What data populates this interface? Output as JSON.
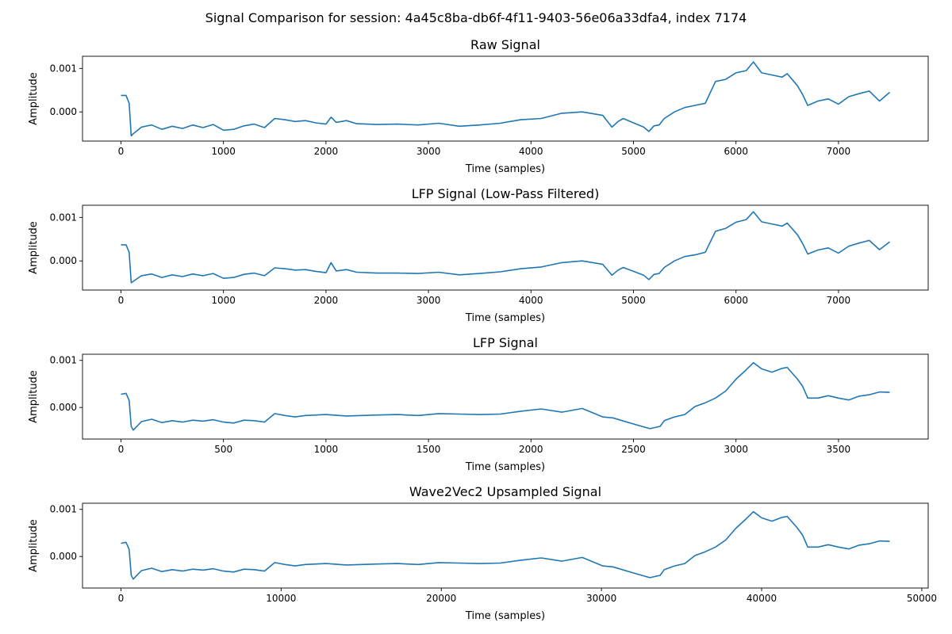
{
  "figure": {
    "title": "Signal Comparison for session: 4a45c8ba-db6f-4f11-9403-56e06a33dfa4, index 7174"
  },
  "chart_data": [
    {
      "type": "line",
      "title": "Raw Signal",
      "xlabel": "Time (samples)",
      "ylabel": "Amplitude",
      "xlim": [
        -375,
        7875
      ],
      "ylim": [
        -0.00067,
        0.00128
      ],
      "xticks": [
        0,
        1000,
        2000,
        3000,
        4000,
        5000,
        6000,
        7000
      ],
      "xtick_labels": [
        "0",
        "1000",
        "2000",
        "3000",
        "4000",
        "5000",
        "6000",
        "7000"
      ],
      "yticks": [
        0.0,
        0.001
      ],
      "ytick_labels": [
        "0.000",
        "0.001"
      ],
      "grid": false,
      "color": "#1f77b4",
      "series": [
        {
          "x": [
            0,
            50,
            80,
            100,
            120,
            200,
            300,
            400,
            500,
            600,
            700,
            800,
            900,
            1000,
            1100,
            1200,
            1300,
            1400,
            1500,
            1600,
            1700,
            1800,
            1900,
            2000,
            2050,
            2100,
            2200,
            2300,
            2500,
            2700,
            2900,
            3100,
            3300,
            3500,
            3700,
            3900,
            4100,
            4300,
            4500,
            4700,
            4790,
            4850,
            4900,
            5000,
            5100,
            5150,
            5200,
            5250,
            5300,
            5400,
            5500,
            5600,
            5700,
            5800,
            5900,
            6000,
            6100,
            6170,
            6250,
            6350,
            6450,
            6500,
            6600,
            6650,
            6700,
            6800,
            6900,
            7000,
            7100,
            7200,
            7300,
            7400,
            7500
          ],
          "y": [
            0.00038,
            0.00038,
            0.0002,
            -0.00055,
            -0.0005,
            -0.00035,
            -0.0003,
            -0.0004,
            -0.00033,
            -0.00038,
            -0.0003,
            -0.00036,
            -0.00029,
            -0.00042,
            -0.0004,
            -0.00032,
            -0.00028,
            -0.00036,
            -0.00015,
            -0.00018,
            -0.00022,
            -0.0002,
            -0.00025,
            -0.00028,
            -0.00012,
            -0.00024,
            -0.0002,
            -0.00027,
            -0.00029,
            -0.00028,
            -0.0003,
            -0.00026,
            -0.00033,
            -0.0003,
            -0.00026,
            -0.00018,
            -0.00015,
            -3e-05,
            0.0,
            -8e-05,
            -0.00035,
            -0.00022,
            -0.00015,
            -0.00025,
            -0.00035,
            -0.00045,
            -0.00032,
            -0.0003,
            -0.00015,
            0.0,
            0.0001,
            0.00015,
            0.0002,
            0.0007,
            0.00075,
            0.0009,
            0.00095,
            0.00115,
            0.0009,
            0.00085,
            0.0008,
            0.00088,
            0.0006,
            0.0004,
            0.00015,
            0.00025,
            0.0003,
            0.00018,
            0.00035,
            0.00042,
            0.00048,
            0.00025,
            0.00045
          ]
        }
      ]
    },
    {
      "type": "line",
      "title": "LFP Signal (Low-Pass Filtered)",
      "xlabel": "Time (samples)",
      "ylabel": "Amplitude",
      "xlim": [
        -375,
        7875
      ],
      "ylim": [
        -0.00067,
        0.00128
      ],
      "xticks": [
        0,
        1000,
        2000,
        3000,
        4000,
        5000,
        6000,
        7000
      ],
      "xtick_labels": [
        "0",
        "1000",
        "2000",
        "3000",
        "4000",
        "5000",
        "6000",
        "7000"
      ],
      "yticks": [
        0.0,
        0.001
      ],
      "ytick_labels": [
        "0.000",
        "0.001"
      ],
      "grid": false,
      "color": "#1f77b4",
      "series": [
        {
          "x": [
            0,
            50,
            80,
            100,
            120,
            200,
            300,
            400,
            500,
            600,
            700,
            800,
            900,
            1000,
            1100,
            1200,
            1300,
            1400,
            1500,
            1600,
            1700,
            1800,
            1900,
            2000,
            2050,
            2100,
            2200,
            2300,
            2500,
            2700,
            2900,
            3100,
            3300,
            3500,
            3700,
            3900,
            4100,
            4300,
            4500,
            4700,
            4790,
            4850,
            4900,
            5000,
            5100,
            5150,
            5200,
            5250,
            5300,
            5400,
            5500,
            5600,
            5700,
            5800,
            5900,
            6000,
            6100,
            6170,
            6250,
            6350,
            6450,
            6500,
            6600,
            6650,
            6700,
            6800,
            6900,
            7000,
            7100,
            7200,
            7300,
            7400,
            7500
          ],
          "y": [
            0.00037,
            0.00037,
            0.0002,
            -0.0005,
            -0.00047,
            -0.00034,
            -0.0003,
            -0.00038,
            -0.00032,
            -0.00036,
            -0.0003,
            -0.00034,
            -0.00029,
            -0.0004,
            -0.00038,
            -0.00031,
            -0.00028,
            -0.00034,
            -0.00016,
            -0.00018,
            -0.00021,
            -0.0002,
            -0.00024,
            -0.00027,
            -4e-05,
            -0.00023,
            -0.0002,
            -0.00026,
            -0.00028,
            -0.00028,
            -0.00029,
            -0.00026,
            -0.00032,
            -0.00029,
            -0.00025,
            -0.00018,
            -0.00014,
            -4e-05,
            0.0,
            -8e-05,
            -0.00033,
            -0.00021,
            -0.00015,
            -0.00024,
            -0.00033,
            -0.00043,
            -0.00031,
            -0.00029,
            -0.00015,
            0.0,
            0.0001,
            0.00014,
            0.0002,
            0.00068,
            0.00075,
            0.00089,
            0.00095,
            0.00113,
            0.0009,
            0.00085,
            0.0008,
            0.00087,
            0.0006,
            0.0004,
            0.00016,
            0.00025,
            0.0003,
            0.00018,
            0.00034,
            0.00041,
            0.00047,
            0.00026,
            0.00044
          ]
        }
      ]
    },
    {
      "type": "line",
      "title": "LFP Signal",
      "xlabel": "Time (samples)",
      "ylabel": "Amplitude",
      "xlim": [
        -187.5,
        3937.5
      ],
      "ylim": [
        -0.00067,
        0.00113
      ],
      "xticks": [
        0,
        500,
        1000,
        1500,
        2000,
        2500,
        3000,
        3500
      ],
      "xtick_labels": [
        "0",
        "500",
        "1000",
        "1500",
        "2000",
        "2500",
        "3000",
        "3500"
      ],
      "yticks": [
        0.0,
        0.001
      ],
      "ytick_labels": [
        "0.000",
        "0.001"
      ],
      "grid": false,
      "color": "#1f77b4",
      "series": [
        {
          "x": [
            0,
            25,
            40,
            50,
            60,
            100,
            150,
            200,
            250,
            300,
            350,
            400,
            450,
            500,
            550,
            600,
            650,
            700,
            750,
            800,
            850,
            900,
            1000,
            1100,
            1250,
            1350,
            1450,
            1550,
            1650,
            1750,
            1850,
            1950,
            2050,
            2150,
            2250,
            2350,
            2400,
            2500,
            2580,
            2630,
            2650,
            2700,
            2750,
            2800,
            2850,
            2900,
            2950,
            3000,
            3050,
            3085,
            3125,
            3175,
            3225,
            3250,
            3300,
            3325,
            3350,
            3400,
            3450,
            3500,
            3550,
            3600,
            3650,
            3700,
            3750
          ],
          "y": [
            0.00028,
            0.0003,
            0.00015,
            -0.0004,
            -0.00048,
            -0.0003,
            -0.00025,
            -0.00032,
            -0.00028,
            -0.00031,
            -0.00027,
            -0.00029,
            -0.00026,
            -0.00031,
            -0.00033,
            -0.00027,
            -0.00028,
            -0.00031,
            -0.00013,
            -0.00017,
            -0.0002,
            -0.00017,
            -0.00015,
            -0.00018,
            -0.00016,
            -0.00015,
            -0.00017,
            -0.00013,
            -0.00014,
            -0.00015,
            -0.00014,
            -8e-05,
            -3e-05,
            -0.0001,
            -2e-05,
            -0.0002,
            -0.00022,
            -0.00035,
            -0.00045,
            -0.0004,
            -0.00028,
            -0.0002,
            -0.00015,
            2e-05,
            0.0001,
            0.0002,
            0.00035,
            0.0006,
            0.0008,
            0.00095,
            0.00082,
            0.00075,
            0.00083,
            0.00085,
            0.0006,
            0.00045,
            0.0002,
            0.0002,
            0.00025,
            0.0002,
            0.00016,
            0.00024,
            0.00027,
            0.00033,
            0.00032
          ]
        }
      ]
    },
    {
      "type": "line",
      "title": "Wave2Vec2 Upsampled Signal",
      "xlabel": "Time (samples)",
      "ylabel": "Amplitude",
      "xlim": [
        -2400,
        50400
      ],
      "ylim": [
        -0.00067,
        0.00113
      ],
      "xticks": [
        0,
        10000,
        20000,
        30000,
        40000,
        50000
      ],
      "xtick_labels": [
        "0",
        "10000",
        "20000",
        "30000",
        "40000",
        "50000"
      ],
      "yticks": [
        0.0,
        0.001
      ],
      "ytick_labels": [
        "0.000",
        "0.001"
      ],
      "grid": false,
      "color": "#1f77b4",
      "series": [
        {
          "x": [
            0,
            320,
            512,
            640,
            768,
            1280,
            1920,
            2560,
            3200,
            3840,
            4480,
            5120,
            5760,
            6400,
            7040,
            7680,
            8320,
            8960,
            9600,
            10240,
            10880,
            11520,
            12800,
            14080,
            16000,
            17280,
            18560,
            19840,
            21120,
            22400,
            23680,
            24960,
            26240,
            27520,
            28800,
            30080,
            30720,
            32000,
            33024,
            33664,
            33920,
            34560,
            35200,
            35840,
            36480,
            37120,
            37760,
            38400,
            39040,
            39488,
            40000,
            40640,
            41280,
            41600,
            42240,
            42560,
            42880,
            43520,
            44160,
            44800,
            45440,
            46080,
            46720,
            47360,
            48000
          ],
          "y": [
            0.00028,
            0.0003,
            0.00015,
            -0.0004,
            -0.00048,
            -0.0003,
            -0.00025,
            -0.00032,
            -0.00028,
            -0.00031,
            -0.00027,
            -0.00029,
            -0.00026,
            -0.00031,
            -0.00033,
            -0.00027,
            -0.00028,
            -0.00031,
            -0.00013,
            -0.00017,
            -0.0002,
            -0.00017,
            -0.00015,
            -0.00018,
            -0.00016,
            -0.00015,
            -0.00017,
            -0.00013,
            -0.00014,
            -0.00015,
            -0.00014,
            -8e-05,
            -3e-05,
            -0.0001,
            -2e-05,
            -0.0002,
            -0.00022,
            -0.00035,
            -0.00045,
            -0.0004,
            -0.00028,
            -0.0002,
            -0.00015,
            2e-05,
            0.0001,
            0.0002,
            0.00035,
            0.0006,
            0.0008,
            0.00095,
            0.00082,
            0.00075,
            0.00083,
            0.00085,
            0.0006,
            0.00045,
            0.0002,
            0.0002,
            0.00025,
            0.0002,
            0.00016,
            0.00024,
            0.00027,
            0.00033,
            0.00032
          ]
        }
      ]
    }
  ]
}
